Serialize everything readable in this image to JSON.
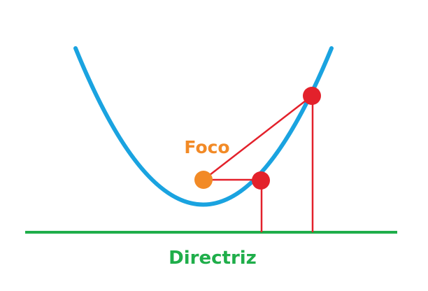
{
  "diagram": {
    "focus_label": "Foco",
    "directrix_label": "Directriz",
    "colors": {
      "parabola": "#1aa3e0",
      "focus_point": "#f28a26",
      "focus_label": "#f28a26",
      "directrix": "#1fae4a",
      "directrix_label": "#1fae4a",
      "curve_points": "#e3212b",
      "segments": "#e3212b",
      "background": "#ffffff"
    }
  }
}
